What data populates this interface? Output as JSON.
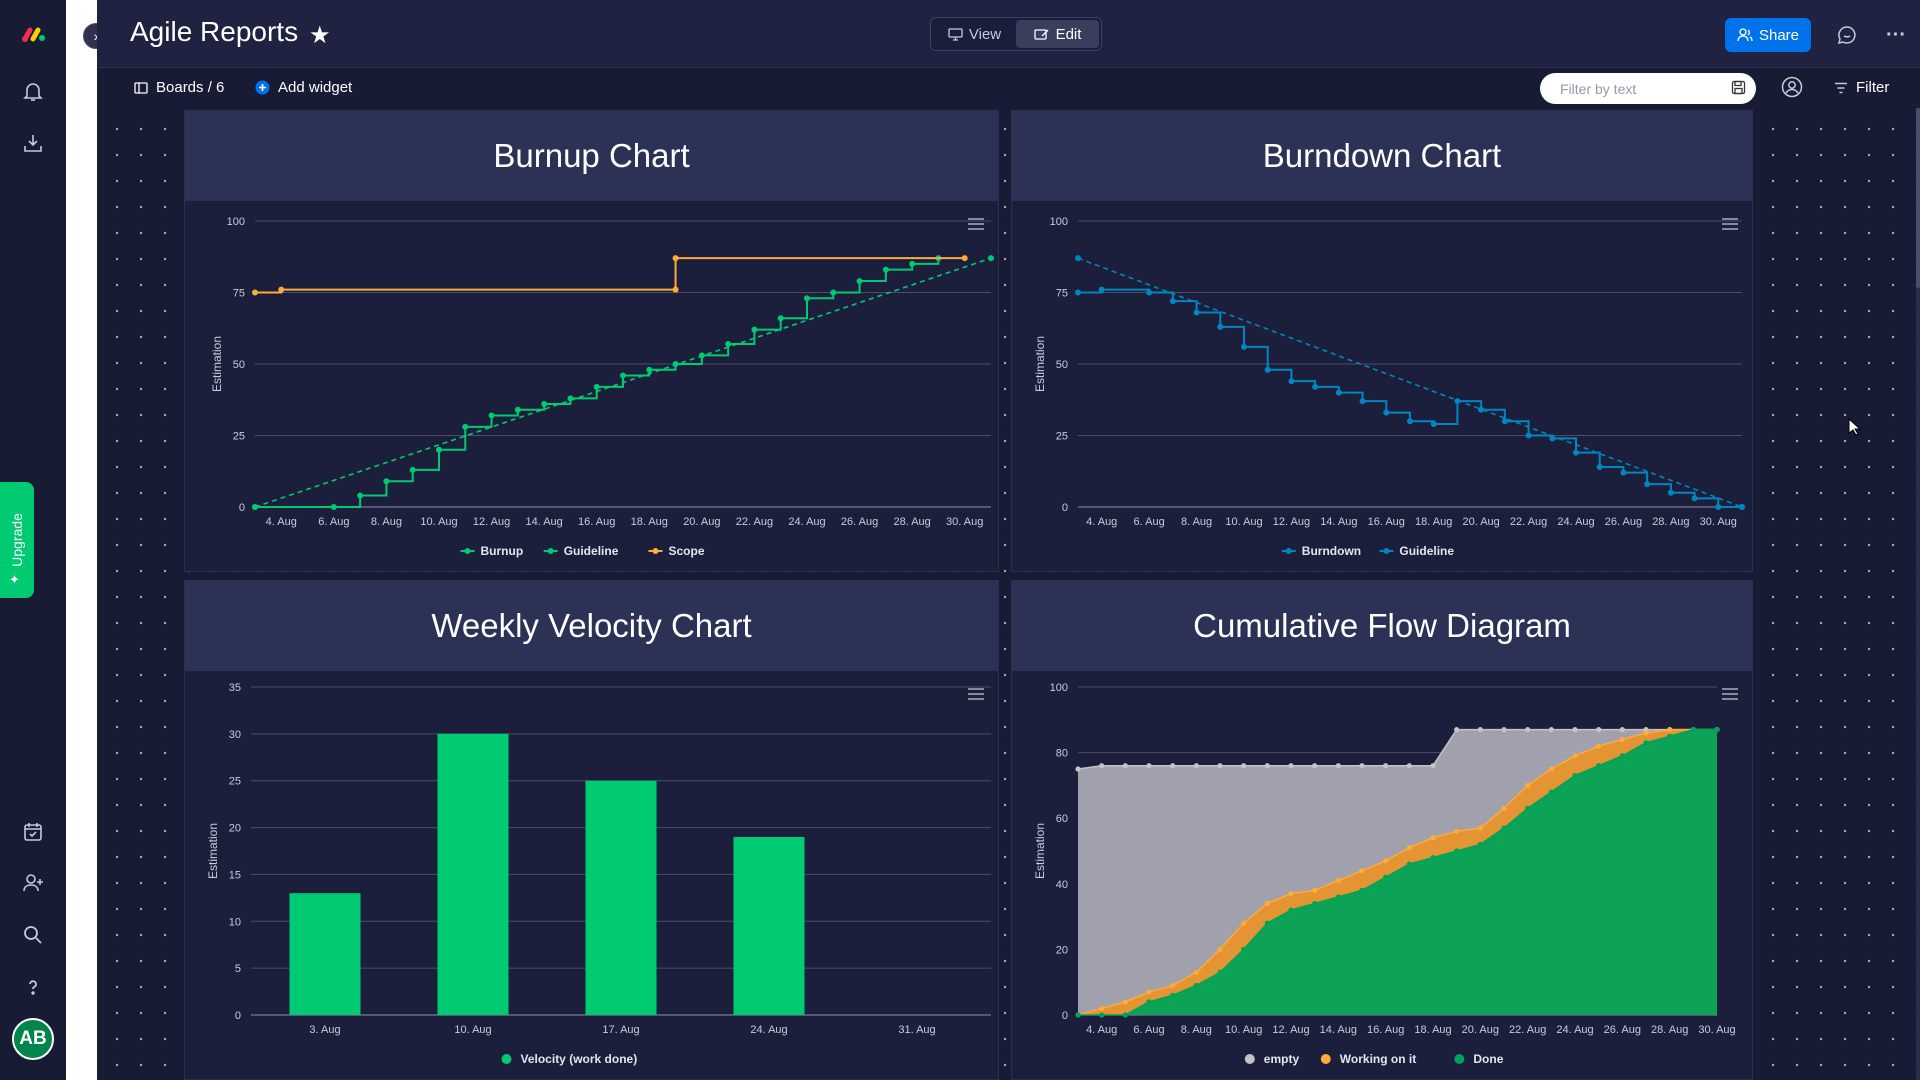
{
  "app": {
    "title": "Agile Reports"
  },
  "header": {
    "view_label": "View",
    "edit_label": "Edit",
    "share_label": "Share"
  },
  "toolbar": {
    "boards_label": "Boards / 6",
    "add_widget_label": "Add widget",
    "filter_placeholder": "Filter by text",
    "filter_label": "Filter"
  },
  "sidebar": {
    "upgrade_label": "Upgrade",
    "avatar_initials": "AB"
  },
  "colors": {
    "green": "#00ca72",
    "orange": "#fdab3d",
    "blue": "#0086c0",
    "gray": "#a0a2ad",
    "done_fill": "#00a359"
  },
  "widgets": {
    "burnup_title": "Burnup Chart",
    "burndown_title": "Burndown Chart",
    "velocity_title": "Weekly Velocity Chart",
    "cfd_title": "Cumulative Flow Diagram"
  },
  "chart_data": [
    {
      "type": "line",
      "title": "Burnup Chart",
      "ylabel": "Estimation",
      "ylim": [
        0,
        100
      ],
      "yticks": [
        0,
        25,
        50,
        75,
        100
      ],
      "x_ticks": [
        "4. Aug",
        "6. Aug",
        "8. Aug",
        "10. Aug",
        "12. Aug",
        "14. Aug",
        "16. Aug",
        "18. Aug",
        "20. Aug",
        "22. Aug",
        "24. Aug",
        "26. Aug",
        "28. Aug",
        "30. Aug"
      ],
      "x_range_days": [
        3,
        31
      ],
      "series": [
        {
          "name": "Burnup",
          "color": "#00ca72",
          "step": true,
          "points": [
            [
              3,
              0
            ],
            [
              6,
              0
            ],
            [
              7,
              4
            ],
            [
              8,
              9
            ],
            [
              9,
              13
            ],
            [
              10,
              20
            ],
            [
              11,
              28
            ],
            [
              12,
              32
            ],
            [
              13,
              34
            ],
            [
              14,
              36
            ],
            [
              15,
              38
            ],
            [
              16,
              42
            ],
            [
              17,
              46
            ],
            [
              18,
              48
            ],
            [
              19,
              50
            ],
            [
              20,
              53
            ],
            [
              21,
              57
            ],
            [
              22,
              62
            ],
            [
              23,
              66
            ],
            [
              24,
              73
            ],
            [
              25,
              75
            ],
            [
              26,
              79
            ],
            [
              27,
              83
            ],
            [
              28,
              85
            ],
            [
              29,
              87
            ]
          ]
        },
        {
          "name": "Guideline",
          "color": "#00ca72",
          "dashed": true,
          "points": [
            [
              3,
              0
            ],
            [
              31,
              87
            ]
          ]
        },
        {
          "name": "Scope",
          "color": "#fdab3d",
          "step": true,
          "points": [
            [
              3,
              75
            ],
            [
              4,
              76
            ],
            [
              19,
              76
            ],
            [
              19,
              87
            ],
            [
              30,
              87
            ]
          ]
        }
      ]
    },
    {
      "type": "line",
      "title": "Burndown Chart",
      "ylabel": "Estimation",
      "ylim": [
        0,
        100
      ],
      "yticks": [
        0,
        25,
        50,
        75,
        100
      ],
      "x_ticks": [
        "4. Aug",
        "6. Aug",
        "8. Aug",
        "10. Aug",
        "12. Aug",
        "14. Aug",
        "16. Aug",
        "18. Aug",
        "20. Aug",
        "22. Aug",
        "24. Aug",
        "26. Aug",
        "28. Aug",
        "30. Aug"
      ],
      "x_range_days": [
        3,
        31
      ],
      "series": [
        {
          "name": "Burndown",
          "color": "#0086c0",
          "step": true,
          "points": [
            [
              3,
              75
            ],
            [
              4,
              76
            ],
            [
              6,
              75
            ],
            [
              7,
              72
            ],
            [
              8,
              68
            ],
            [
              9,
              63
            ],
            [
              10,
              56
            ],
            [
              11,
              48
            ],
            [
              12,
              44
            ],
            [
              13,
              42
            ],
            [
              14,
              40
            ],
            [
              15,
              37
            ],
            [
              16,
              33
            ],
            [
              17,
              30
            ],
            [
              18,
              29
            ],
            [
              19,
              37
            ],
            [
              20,
              34
            ],
            [
              21,
              30
            ],
            [
              22,
              25
            ],
            [
              23,
              24
            ],
            [
              24,
              19
            ],
            [
              25,
              14
            ],
            [
              26,
              12
            ],
            [
              27,
              8
            ],
            [
              28,
              5
            ],
            [
              29,
              3
            ],
            [
              30,
              0
            ],
            [
              31,
              0
            ]
          ]
        },
        {
          "name": "Guideline",
          "color": "#0086c0",
          "dashed": true,
          "points": [
            [
              3,
              87
            ],
            [
              31,
              0
            ]
          ]
        }
      ]
    },
    {
      "type": "bar",
      "title": "Weekly Velocity Chart",
      "ylabel": "Estimation",
      "ylim": [
        0,
        35
      ],
      "yticks": [
        0,
        5,
        10,
        15,
        20,
        25,
        30,
        35
      ],
      "categories": [
        "3. Aug",
        "10. Aug",
        "17. Aug",
        "24. Aug",
        "31. Aug"
      ],
      "series": [
        {
          "name": "Velocity (work done)",
          "color": "#00ca72",
          "values": [
            13,
            30,
            25,
            19,
            0
          ]
        }
      ]
    },
    {
      "type": "area",
      "title": "Cumulative Flow Diagram",
      "ylabel": "Estimation",
      "ylim": [
        0,
        100
      ],
      "yticks": [
        0,
        20,
        40,
        60,
        80,
        100
      ],
      "x_ticks": [
        "4. Aug",
        "6. Aug",
        "8. Aug",
        "10. Aug",
        "12. Aug",
        "14. Aug",
        "16. Aug",
        "18. Aug",
        "20. Aug",
        "22. Aug",
        "24. Aug",
        "26. Aug",
        "28. Aug",
        "30. Aug"
      ],
      "x_range_days": [
        3,
        30
      ],
      "x_days": [
        3,
        4,
        5,
        6,
        7,
        8,
        9,
        10,
        11,
        12,
        13,
        14,
        15,
        16,
        17,
        18,
        19,
        20,
        21,
        22,
        23,
        24,
        25,
        26,
        27,
        28,
        29,
        30
      ],
      "series": [
        {
          "name": "empty",
          "color": "#c4c4c4",
          "values": [
            75,
            76,
            76,
            76,
            76,
            76,
            76,
            76,
            76,
            76,
            76,
            76,
            76,
            76,
            76,
            76,
            87,
            87,
            87,
            87,
            87,
            87,
            87,
            87,
            87,
            87,
            87,
            87
          ]
        },
        {
          "name": "Working on it",
          "color": "#fdab3d",
          "values": [
            0,
            2,
            4,
            7,
            9,
            13,
            20,
            28,
            34,
            37,
            38,
            41,
            44,
            47,
            51,
            54,
            56,
            57,
            63,
            70,
            75,
            79,
            82,
            84,
            86,
            87,
            87,
            87
          ]
        },
        {
          "name": "Done",
          "color": "#00a359",
          "values": [
            0,
            0,
            0,
            4,
            6,
            9,
            13,
            20,
            28,
            32,
            34,
            36,
            38,
            42,
            46,
            48,
            50,
            52,
            57,
            63,
            68,
            73,
            76,
            79,
            83,
            85,
            87,
            87
          ]
        }
      ]
    }
  ]
}
